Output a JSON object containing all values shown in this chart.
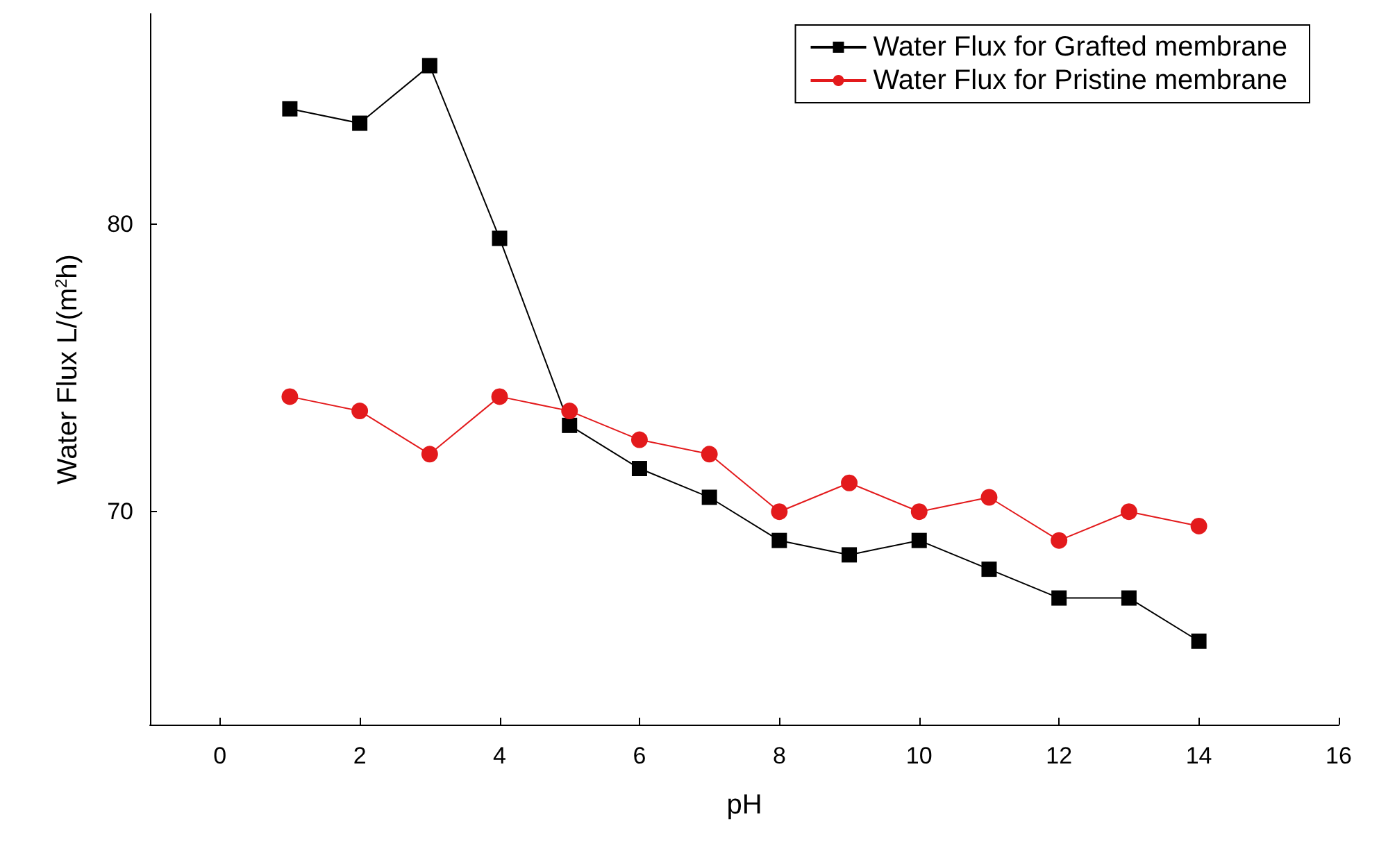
{
  "chart_data": {
    "type": "line",
    "xlabel": "pH",
    "ylabel": "Water Flux L/(m$^{2}$h)",
    "x": [
      1,
      2,
      3,
      4,
      5,
      6,
      7,
      8,
      9,
      10,
      11,
      12,
      13,
      14
    ],
    "series": [
      {
        "name": "Water Flux for Grafted membrane",
        "color": "#000000",
        "marker": "square",
        "values": [
          84,
          83.5,
          85.5,
          79.5,
          73,
          71.5,
          70.5,
          69,
          68.5,
          69,
          68,
          67,
          67,
          65.5
        ]
      },
      {
        "name": "Water Flux for Pristine membrane",
        "color": "#e31a1c",
        "marker": "circle",
        "values": [
          74,
          73.5,
          72,
          74,
          73.5,
          72.5,
          72,
          70,
          71,
          70,
          70.5,
          69,
          70,
          69.5
        ]
      }
    ],
    "xlim": [
      -1,
      16
    ],
    "xticks": [
      0,
      2,
      4,
      6,
      8,
      10,
      12,
      14,
      16
    ],
    "ylim": [
      62.6,
      87.3
    ],
    "yticks": [
      70,
      80
    ],
    "grid": false,
    "legend": "top right",
    "line_style": "solid"
  }
}
